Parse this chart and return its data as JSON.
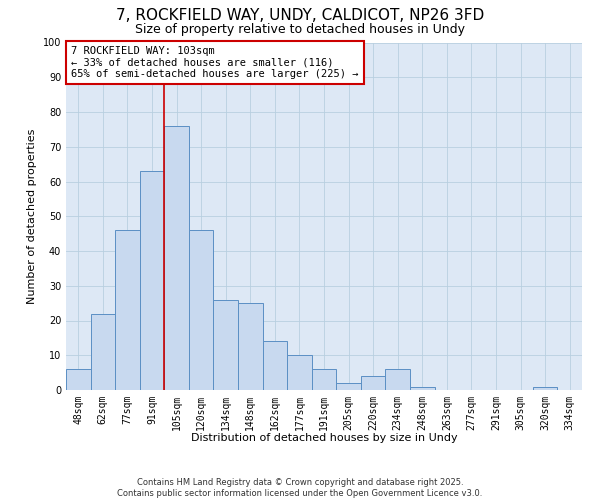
{
  "title": "7, ROCKFIELD WAY, UNDY, CALDICOT, NP26 3FD",
  "subtitle": "Size of property relative to detached houses in Undy",
  "xlabel": "Distribution of detached houses by size in Undy",
  "ylabel": "Number of detached properties",
  "bar_labels": [
    "48sqm",
    "62sqm",
    "77sqm",
    "91sqm",
    "105sqm",
    "120sqm",
    "134sqm",
    "148sqm",
    "162sqm",
    "177sqm",
    "191sqm",
    "205sqm",
    "220sqm",
    "234sqm",
    "248sqm",
    "263sqm",
    "277sqm",
    "291sqm",
    "305sqm",
    "320sqm",
    "334sqm"
  ],
  "bar_values": [
    6,
    22,
    46,
    63,
    76,
    46,
    26,
    25,
    14,
    10,
    6,
    2,
    4,
    6,
    1,
    0,
    0,
    0,
    0,
    1,
    0
  ],
  "bar_color": "#c8d9ef",
  "bar_edge_color": "#5b8fc4",
  "vline_x_index": 4,
  "vline_color": "#cc0000",
  "ylim": [
    0,
    100
  ],
  "annotation_title": "7 ROCKFIELD WAY: 103sqm",
  "annotation_line1": "← 33% of detached houses are smaller (116)",
  "annotation_line2": "65% of semi-detached houses are larger (225) →",
  "annotation_box_color": "#ffffff",
  "annotation_box_edge": "#cc0000",
  "footer_line1": "Contains HM Land Registry data © Crown copyright and database right 2025.",
  "footer_line2": "Contains public sector information licensed under the Open Government Licence v3.0.",
  "plot_bg_color": "#dde8f5",
  "fig_bg_color": "#ffffff",
  "grid_color": "#b8cfe0",
  "title_fontsize": 11,
  "subtitle_fontsize": 9,
  "ylabel_fontsize": 8,
  "xlabel_fontsize": 8,
  "tick_fontsize": 7,
  "annotation_fontsize": 7.5,
  "footer_fontsize": 6
}
